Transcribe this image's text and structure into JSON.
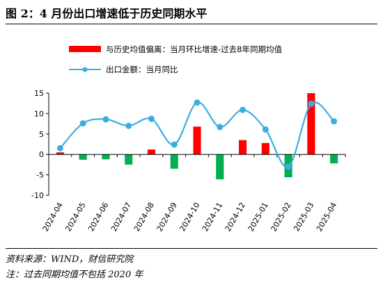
{
  "figure": {
    "title": "图 2：4 月份出口增速低于历史同期水平",
    "source_note": "资料来源：WIND，财信研究院",
    "footnote": "注：过去同期均值不包括 2020 年"
  },
  "colors": {
    "bar_positive": "#ff0000",
    "bar_negative": "#00b050",
    "line": "#3aaee0",
    "axis": "#000000"
  },
  "chart_data": {
    "type": "bar",
    "categories": [
      "2024-04",
      "2024-05",
      "2024-06",
      "2024-07",
      "2024-08",
      "2024-09",
      "2024-10",
      "2024-11",
      "2024-12",
      "2025-01",
      "2025-02",
      "2025-03",
      "2025-04"
    ],
    "series": [
      {
        "name": "与历史均值偏离：当月环比增速-过去8年同期均值",
        "type": "bar",
        "values": [
          0.5,
          -1.3,
          -1.2,
          -2.5,
          1.2,
          -3.5,
          6.8,
          -6.1,
          3.5,
          2.8,
          -5.6,
          15.0,
          -2.2
        ]
      },
      {
        "name": "出口金额：当月同比",
        "type": "line",
        "values": [
          1.5,
          7.6,
          8.6,
          7.0,
          8.7,
          2.4,
          12.7,
          6.7,
          10.9,
          6.1,
          -3.0,
          12.4,
          8.1
        ]
      }
    ],
    "ylim": [
      -10,
      15
    ],
    "yticks": [
      -10,
      -5,
      0,
      5,
      10,
      15
    ],
    "grid": false,
    "legend": "top"
  }
}
